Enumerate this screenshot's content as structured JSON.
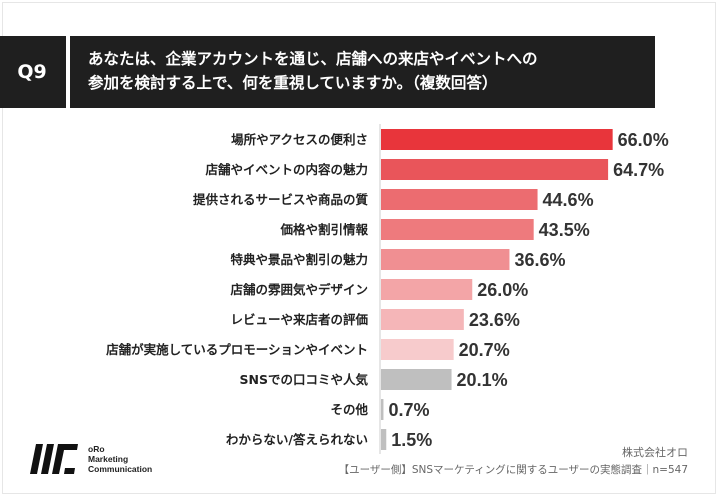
{
  "header": {
    "q_number": "Q9",
    "question_line1": "あなたは、企業アカウントを通じ、店舗への来店やイベントへの",
    "question_line2": "参加を検討する上で、何を重視していますか。（複数回答）"
  },
  "chart_data": {
    "type": "bar",
    "orientation": "horizontal",
    "categories": [
      "場所やアクセスの便利さ",
      "店舗やイベントの内容の魅力",
      "提供されるサービスや商品の質",
      "価格や割引情報",
      "特典や景品や割引の魅力",
      "店舗の雰囲気やデザイン",
      "レビューや来店者の評価",
      "店舗が実施しているプロモーションやイベント",
      "SNSでの口コミや人気",
      "その他",
      "わからない/答えられない"
    ],
    "values": [
      66.0,
      64.7,
      44.6,
      43.5,
      36.6,
      26.0,
      23.6,
      20.7,
      20.1,
      0.7,
      1.5
    ],
    "value_labels": [
      "66.0%",
      "64.7%",
      "44.6%",
      "43.5%",
      "36.6%",
      "26.0%",
      "23.6%",
      "20.7%",
      "20.1%",
      "0.7%",
      "1.5%"
    ],
    "colors": [
      "#e8353b",
      "#e9555a",
      "#ec6c70",
      "#ee7a7d",
      "#f08f92",
      "#f3a5a7",
      "#f5b6b8",
      "#f7cbcc",
      "#bfbfbf",
      "#bfbfbf",
      "#bfbfbf"
    ],
    "xlim": [
      0,
      100
    ],
    "unit": "%"
  },
  "footer": {
    "logo_line1": "oRo",
    "logo_line2": "Marketing",
    "logo_line3": "Communication",
    "company": "株式会社オロ",
    "source": "【ユーザー側】SNSマーケティングに関するユーザーの実態調査｜n=547"
  }
}
